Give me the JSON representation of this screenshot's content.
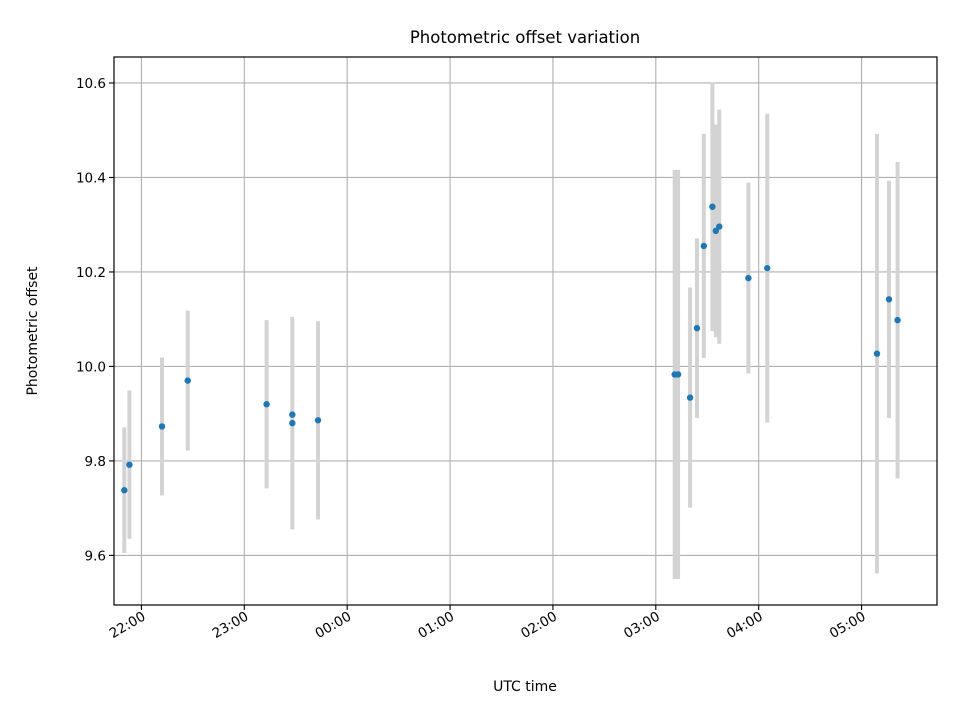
{
  "chart_data": {
    "type": "scatter",
    "title": "Photometric offset variation",
    "xlabel": "UTC time",
    "ylabel": "Photometric offset",
    "x_axis_type": "time",
    "xlim": [
      "21:44",
      "05:44"
    ],
    "ylim": [
      9.495,
      10.655
    ],
    "x_ticks": [
      "22:00",
      "23:00",
      "00:00",
      "01:00",
      "02:00",
      "03:00",
      "04:00",
      "05:00"
    ],
    "y_ticks": [
      "9.6",
      "9.8",
      "10.0",
      "10.2",
      "10.4",
      "10.6"
    ],
    "grid": true,
    "point_color": "#1f77b4",
    "errorbar_color": "#d3d3d3",
    "points": [
      {
        "x": "21:50",
        "y": 9.738,
        "yerr": 0.133
      },
      {
        "x": "21:53",
        "y": 9.792,
        "yerr": 0.157
      },
      {
        "x": "22:12",
        "y": 9.873,
        "yerr": 0.146
      },
      {
        "x": "22:27",
        "y": 9.97,
        "yerr": 0.148
      },
      {
        "x": "23:13",
        "y": 9.92,
        "yerr": 0.178
      },
      {
        "x": "23:28",
        "y": 9.898,
        "yerr": 0.0
      },
      {
        "x": "23:28",
        "y": 9.88,
        "yerr": 0.225
      },
      {
        "x": "23:43",
        "y": 9.886,
        "yerr": 0.21
      },
      {
        "x": "03:11",
        "y": 9.983,
        "yerr": 0.433
      },
      {
        "x": "03:13",
        "y": 9.983,
        "yerr": 0.433
      },
      {
        "x": "03:20",
        "y": 9.934,
        "yerr": 0.233
      },
      {
        "x": "03:24",
        "y": 10.081,
        "yerr": 0.19
      },
      {
        "x": "03:28",
        "y": 10.255,
        "yerr": 0.237
      },
      {
        "x": "03:33",
        "y": 10.338,
        "yerr": 0.263
      },
      {
        "x": "03:35",
        "y": 10.287,
        "yerr": 0.225
      },
      {
        "x": "03:37",
        "y": 10.296,
        "yerr": 0.248
      },
      {
        "x": "03:54",
        "y": 10.187,
        "yerr": 0.202
      },
      {
        "x": "04:05",
        "y": 10.208,
        "yerr": 0.327
      },
      {
        "x": "05:09",
        "y": 10.027,
        "yerr": 0.465
      },
      {
        "x": "05:16",
        "y": 10.142,
        "yerr": 0.251
      },
      {
        "x": "05:21",
        "y": 10.098,
        "yerr": 0.335
      }
    ]
  }
}
